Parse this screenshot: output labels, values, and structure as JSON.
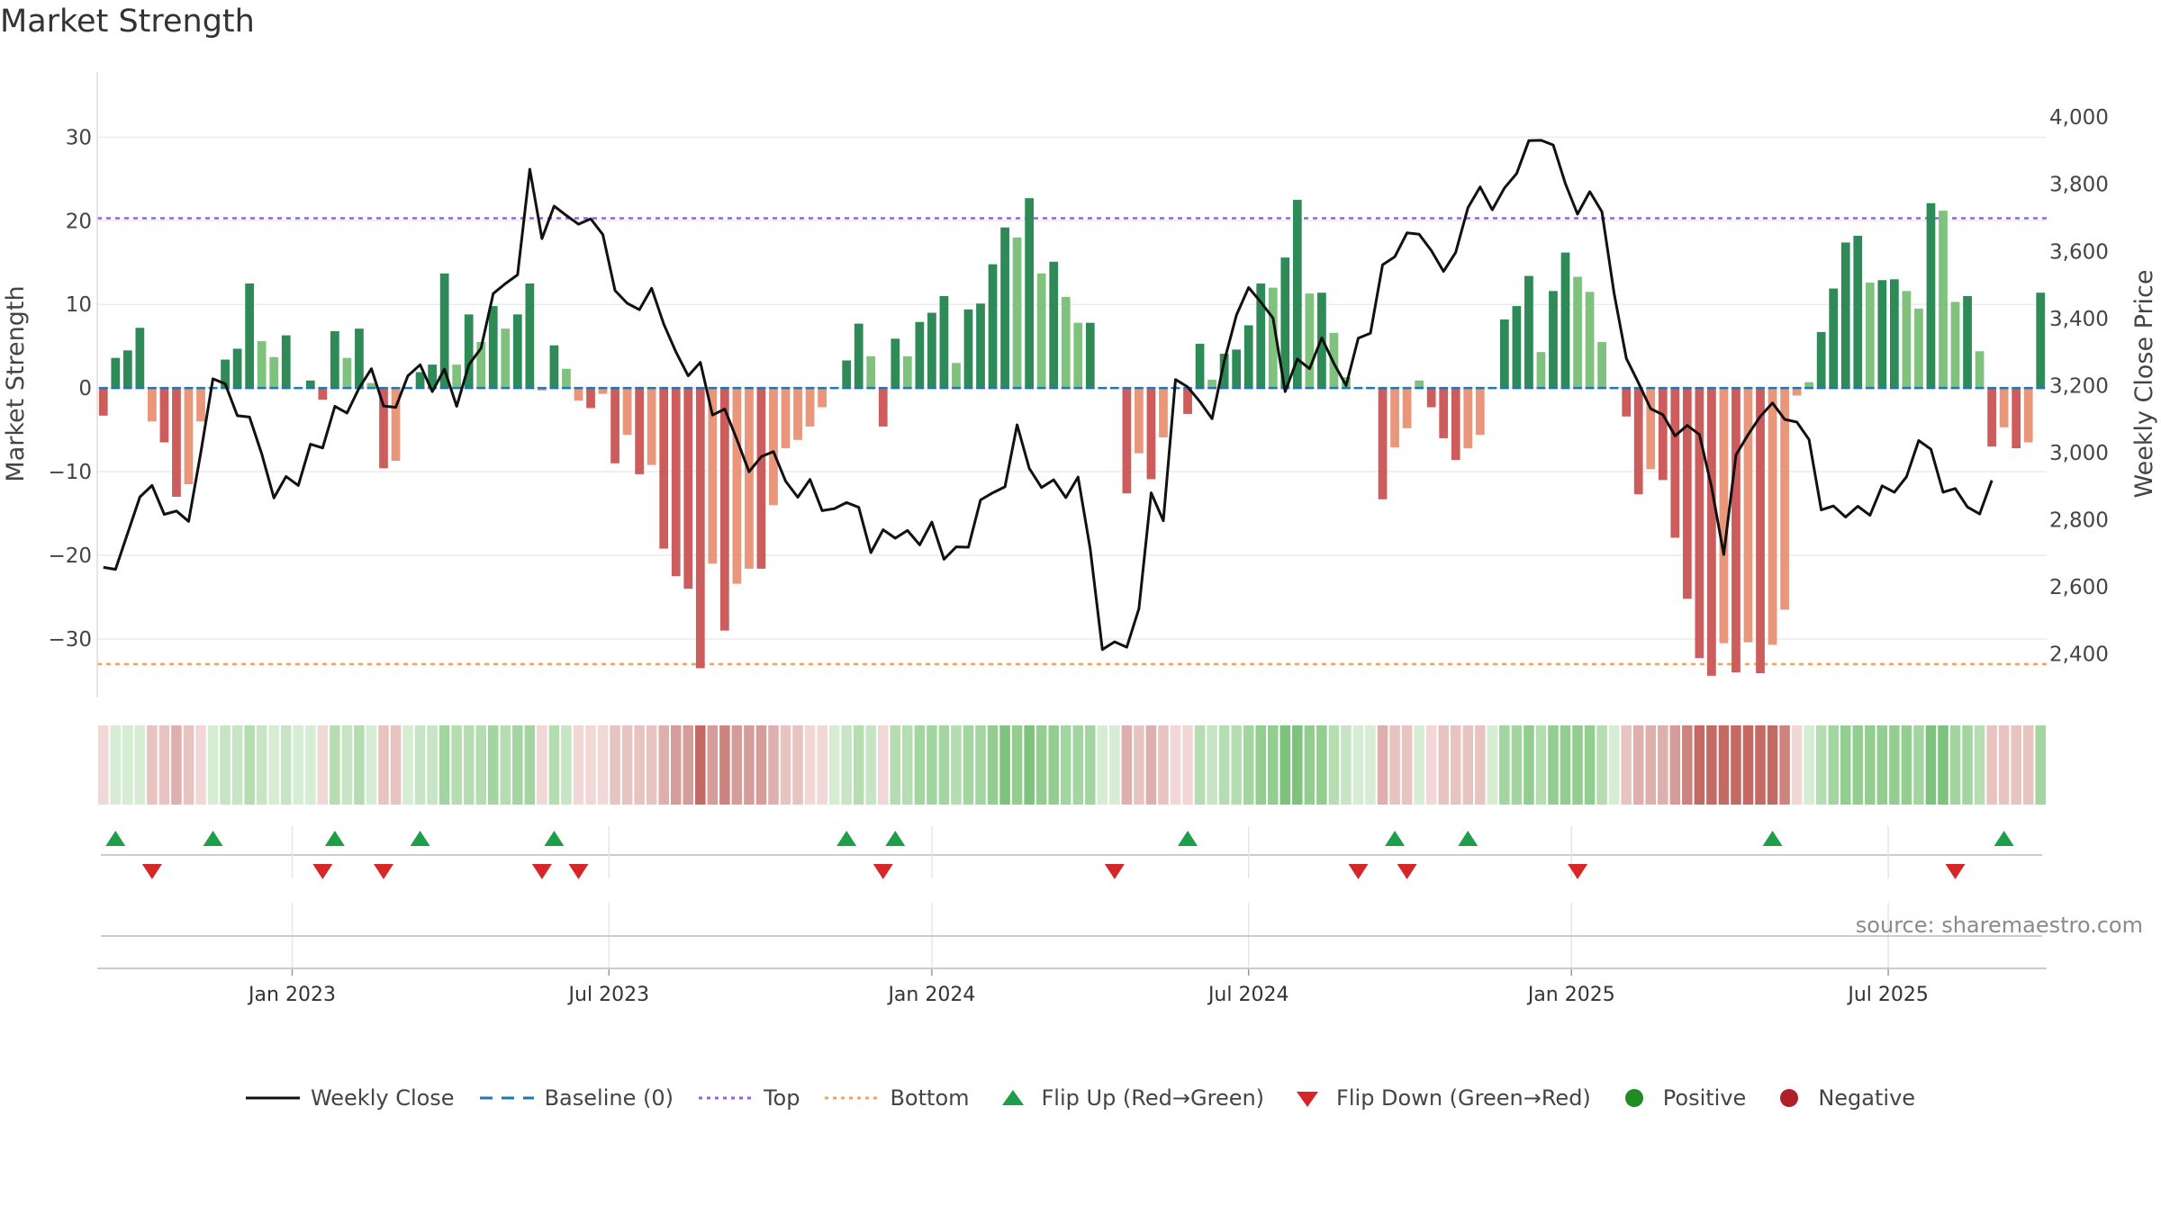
{
  "chart_data": {
    "type": "bar",
    "title": "Market Strength",
    "ylabel_left": "Market Strength",
    "ylabel_right": "Weekly Close Price",
    "ylim_left": [
      -37,
      38
    ],
    "ylim_right": [
      2270,
      4140
    ],
    "yticks_left": [
      -30,
      -20,
      -10,
      0,
      10,
      20,
      30
    ],
    "yticks_left_labels": [
      "−30",
      "−20",
      "−10",
      "0",
      "10",
      "20",
      "30"
    ],
    "yticks_right": [
      2400,
      2600,
      2800,
      3000,
      3200,
      3400,
      3600,
      3800,
      4000
    ],
    "yticks_right_labels": [
      "2,400",
      "2,600",
      "2,800",
      "3,000",
      "3,200",
      "3,400",
      "3,600",
      "3,800",
      "4,000"
    ],
    "xticks": [
      {
        "label": "Jan 2023",
        "week": 16
      },
      {
        "label": "Jul 2023",
        "week": 42
      },
      {
        "label": "Jan 2024",
        "week": 68.5
      },
      {
        "label": "Jul 2024",
        "week": 94.5
      },
      {
        "label": "Jan 2025",
        "week": 121
      },
      {
        "label": "Jul 2025",
        "week": 147
      }
    ],
    "top_level": 20.3,
    "bottom_level": -33,
    "baseline": 0,
    "strength": [
      -3.3,
      3.6,
      4.5,
      7.2,
      -4,
      -6.5,
      -13,
      -11.5,
      -4,
      0,
      3.4,
      4.7,
      12.5,
      5.6,
      3.7,
      6.3,
      0,
      0.9,
      -1.4,
      6.8,
      3.6,
      7.1,
      0.6,
      -9.6,
      -8.7,
      0,
      1.9,
      2.8,
      13.7,
      2.8,
      8.8,
      5.5,
      9.8,
      7.1,
      8.8,
      12.5,
      -0.3,
      5.1,
      2.3,
      -1.5,
      -2.4,
      -0.7,
      -9,
      -5.6,
      -10.3,
      -9.2,
      -19.2,
      -22.5,
      -24,
      -33.5,
      -21,
      -29,
      -23.4,
      -21.6,
      -21.6,
      -14,
      -7.2,
      -6.2,
      -4.6,
      -2.3,
      0,
      3.3,
      7.7,
      3.8,
      -4.6,
      5.9,
      3.8,
      7.9,
      9,
      11,
      3,
      9.4,
      10.1,
      14.8,
      19.2,
      18,
      22.7,
      13.7,
      15.1,
      10.9,
      7.8,
      7.8,
      0,
      0,
      -12.6,
      -7.8,
      -10.9,
      -5.9,
      0,
      -3.1,
      5.3,
      1,
      4.1,
      4.6,
      7.5,
      12.5,
      12,
      15.6,
      22.5,
      11.3,
      11.4,
      6.6,
      1.3,
      0,
      0,
      -13.3,
      -7.1,
      -4.8,
      0.9,
      -2.3,
      -6,
      -8.6,
      -7.2,
      -5.6,
      0,
      8.2,
      9.8,
      13.4,
      4.3,
      11.6,
      16.2,
      13.3,
      11.5,
      5.5,
      0,
      -3.4,
      -12.7,
      -9.7,
      -11,
      -17.9,
      -25.2,
      -32.3,
      -34.4,
      -30.5,
      -34,
      -30.4,
      -34.1,
      -30.7,
      -26.5,
      -0.9,
      0.7,
      6.7,
      11.9,
      17.4,
      18.2,
      12.6,
      12.9,
      13,
      11.6,
      9.5,
      22.1,
      21.2,
      10.3,
      11,
      4.4,
      -7,
      -4.7,
      -7.2,
      -6.5,
      11.4
    ],
    "weekly_close": [
      2658,
      2652,
      2760,
      2868,
      2902,
      2816,
      2826,
      2795,
      3000,
      3220,
      3205,
      3110,
      3106,
      2996,
      2865,
      2929,
      2902,
      3025,
      3014,
      3138,
      3118,
      3193,
      3250,
      3139,
      3135,
      3229,
      3262,
      3182,
      3249,
      3138,
      3262,
      3311,
      3474,
      3504,
      3530,
      3845,
      3638,
      3735,
      3707,
      3681,
      3697,
      3650,
      3483,
      3445,
      3426,
      3490,
      3383,
      3300,
      3229,
      3269,
      3112,
      3130,
      3039,
      2943,
      2988,
      3003,
      2915,
      2867,
      2920,
      2827,
      2833,
      2851,
      2837,
      2702,
      2770,
      2745,
      2768,
      2725,
      2793,
      2682,
      2719,
      2718,
      2859,
      2880,
      2898,
      3083,
      2953,
      2896,
      2919,
      2866,
      2927,
      2713,
      2413,
      2436,
      2420,
      2535,
      2880,
      2797,
      3218,
      3196,
      3152,
      3101,
      3272,
      3410,
      3492,
      3449,
      3401,
      3182,
      3279,
      3250,
      3342,
      3266,
      3200,
      3341,
      3356,
      3560,
      3584,
      3655,
      3651,
      3602,
      3540,
      3597,
      3730,
      3792,
      3724,
      3789,
      3832,
      3930,
      3931,
      3917,
      3802,
      3711,
      3778,
      3718,
      3475,
      3281,
      3208,
      3131,
      3113,
      3050,
      3081,
      3054,
      2897,
      2696,
      2993,
      3054,
      3108,
      3148,
      3099,
      3091,
      3039,
      2829,
      2841,
      2808,
      2840,
      2813,
      2901,
      2882,
      2928,
      3036,
      3010,
      2882,
      2893,
      2838,
      2817,
      2917
    ],
    "heat_colors": [
      "#f1d8d6",
      "#d6ecd3",
      "#d6ecd3",
      "#d6ecd3",
      "#e8c4c1",
      "#e8c4c1",
      "#deb0ad",
      "#e8c4c1",
      "#f1d8d6",
      "#d6ecd3",
      "#c7e5c4",
      "#c7e5c4",
      "#b5ddb1",
      "#c7e5c4",
      "#d6ecd3",
      "#c7e5c4",
      "#d6ecd3",
      "#d6ecd3",
      "#f1d8d6",
      "#b5ddb1",
      "#c7e5c4",
      "#b5ddb1",
      "#d6ecd3",
      "#e8c4c1",
      "#e8c4c1",
      "#d6ecd3",
      "#c7e5c4",
      "#c7e5c4",
      "#a3d5a0",
      "#b5ddb1",
      "#b5ddb1",
      "#b5ddb1",
      "#a3d5a0",
      "#b5ddb1",
      "#a3d5a0",
      "#a3d5a0",
      "#f1d8d6",
      "#b5ddb1",
      "#c7e5c4",
      "#f1d8d6",
      "#f1d8d6",
      "#f1d8d6",
      "#e8c4c1",
      "#e8c4c1",
      "#e8c4c1",
      "#e8c4c1",
      "#deb0ad",
      "#d49d99",
      "#d49d99",
      "#c46a64",
      "#d49d99",
      "#cd847f",
      "#d49d99",
      "#d49d99",
      "#d49d99",
      "#deb0ad",
      "#e8c4c1",
      "#e8c4c1",
      "#f1d8d6",
      "#f1d8d6",
      "#d6ecd3",
      "#c7e5c4",
      "#b5ddb1",
      "#c7e5c4",
      "#f1d8d6",
      "#b5ddb1",
      "#b5ddb1",
      "#a3d5a0",
      "#a3d5a0",
      "#a3d5a0",
      "#b5ddb1",
      "#a3d5a0",
      "#a3d5a0",
      "#93cd90",
      "#7fc27d",
      "#93cd90",
      "#7fc27d",
      "#93cd90",
      "#93cd90",
      "#a3d5a0",
      "#a3d5a0",
      "#a3d5a0",
      "#d6ecd3",
      "#d6ecd3",
      "#deb0ad",
      "#e8c4c1",
      "#deb0ad",
      "#e8c4c1",
      "#f1d8d6",
      "#f1d8d6",
      "#b5ddb1",
      "#c7e5c4",
      "#b5ddb1",
      "#b5ddb1",
      "#a3d5a0",
      "#93cd90",
      "#93cd90",
      "#7fc27d",
      "#7fc27d",
      "#93cd90",
      "#93cd90",
      "#b5ddb1",
      "#c7e5c4",
      "#d6ecd3",
      "#d6ecd3",
      "#deb0ad",
      "#e8c4c1",
      "#e8c4c1",
      "#d6ecd3",
      "#f1d8d6",
      "#e8c4c1",
      "#e8c4c1",
      "#e8c4c1",
      "#e8c4c1",
      "#d6ecd3",
      "#a3d5a0",
      "#a3d5a0",
      "#93cd90",
      "#b5ddb1",
      "#93cd90",
      "#93cd90",
      "#93cd90",
      "#93cd90",
      "#b5ddb1",
      "#d6ecd3",
      "#e8c4c1",
      "#deb0ad",
      "#deb0ad",
      "#deb0ad",
      "#d49d99",
      "#cd847f",
      "#c46a64",
      "#c46a64",
      "#c46a64",
      "#c46a64",
      "#c46a64",
      "#c46a64",
      "#c46a64",
      "#cd847f",
      "#f1d8d6",
      "#d6ecd3",
      "#b5ddb1",
      "#a3d5a0",
      "#93cd90",
      "#93cd90",
      "#93cd90",
      "#93cd90",
      "#93cd90",
      "#93cd90",
      "#a3d5a0",
      "#7fc27d",
      "#7fc27d",
      "#a3d5a0",
      "#a3d5a0",
      "#b5ddb1",
      "#e8c4c1",
      "#e8c4c1",
      "#e8c4c1",
      "#e8c4c1",
      "#a3d5a0"
    ],
    "flip_up_weeks": [
      1,
      9,
      19,
      26,
      37,
      61,
      65,
      89,
      106,
      112,
      137,
      156
    ],
    "flip_down_weeks": [
      4,
      18,
      23,
      36,
      39,
      64,
      83,
      103,
      107,
      121,
      152
    ],
    "colors": {
      "green_strong": "#2e8b57",
      "green_light": "#7fc27d",
      "red_strong": "#cd5c5c",
      "red_light": "#e9967a",
      "top_line": "#9b5de5",
      "bottom_line": "#f4a261",
      "baseline": "#1f77b4",
      "price_line": "#111111",
      "flip_up": "#1f9e4a",
      "flip_down": "#d62728",
      "positive": "#1f8b24",
      "negative": "#b0202a"
    }
  },
  "legend": {
    "weekly_close": "Weekly Close",
    "baseline": "Baseline (0)",
    "top": "Top",
    "bottom": "Bottom",
    "flip_up": "Flip Up (Red→Green)",
    "flip_down": "Flip Down (Green→Red)",
    "positive": "Positive",
    "negative": "Negative"
  },
  "source": "source: sharemaestro.com"
}
